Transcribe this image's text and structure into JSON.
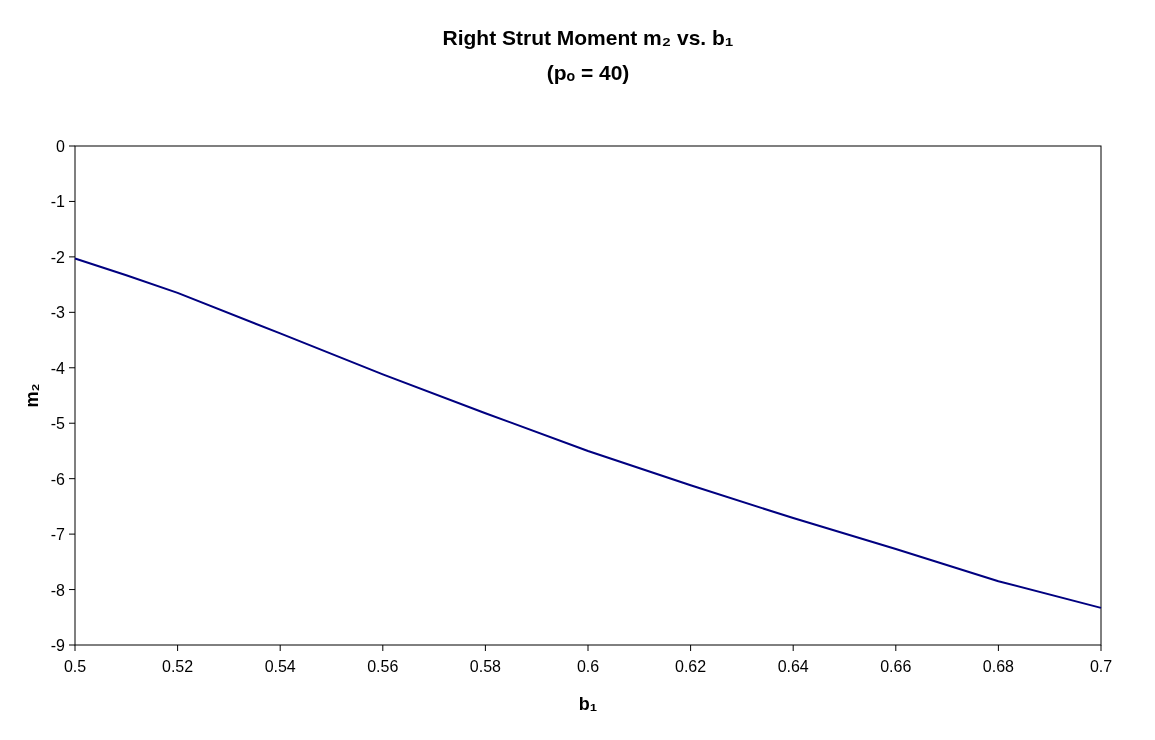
{
  "chart_data": {
    "type": "line",
    "title": "Right Strut Moment m₂ vs. b₁",
    "subtitle": "(pₒ = 40)",
    "xlabel": "b₁",
    "ylabel": "m₂",
    "x": [
      0.5,
      0.51,
      0.52,
      0.54,
      0.56,
      0.58,
      0.6,
      0.62,
      0.64,
      0.66,
      0.68,
      0.7
    ],
    "series": [
      {
        "color": "#000080",
        "values": [
          -2.03,
          -2.33,
          -2.65,
          -3.38,
          -4.12,
          -4.82,
          -5.5,
          -6.12,
          -6.71,
          -7.27,
          -7.85,
          -8.33
        ]
      }
    ],
    "xlim": [
      0.5,
      0.7
    ],
    "xticks": [
      0.5,
      0.52,
      0.54,
      0.56,
      0.58,
      0.6,
      0.62,
      0.64,
      0.66,
      0.68,
      0.7
    ],
    "ylim": [
      -9,
      0
    ],
    "yticks": [
      -9,
      -8,
      -7,
      -6,
      -5,
      -4,
      -3,
      -2,
      -1,
      0
    ],
    "grid": false,
    "marker": "none",
    "line_style": "solid"
  }
}
